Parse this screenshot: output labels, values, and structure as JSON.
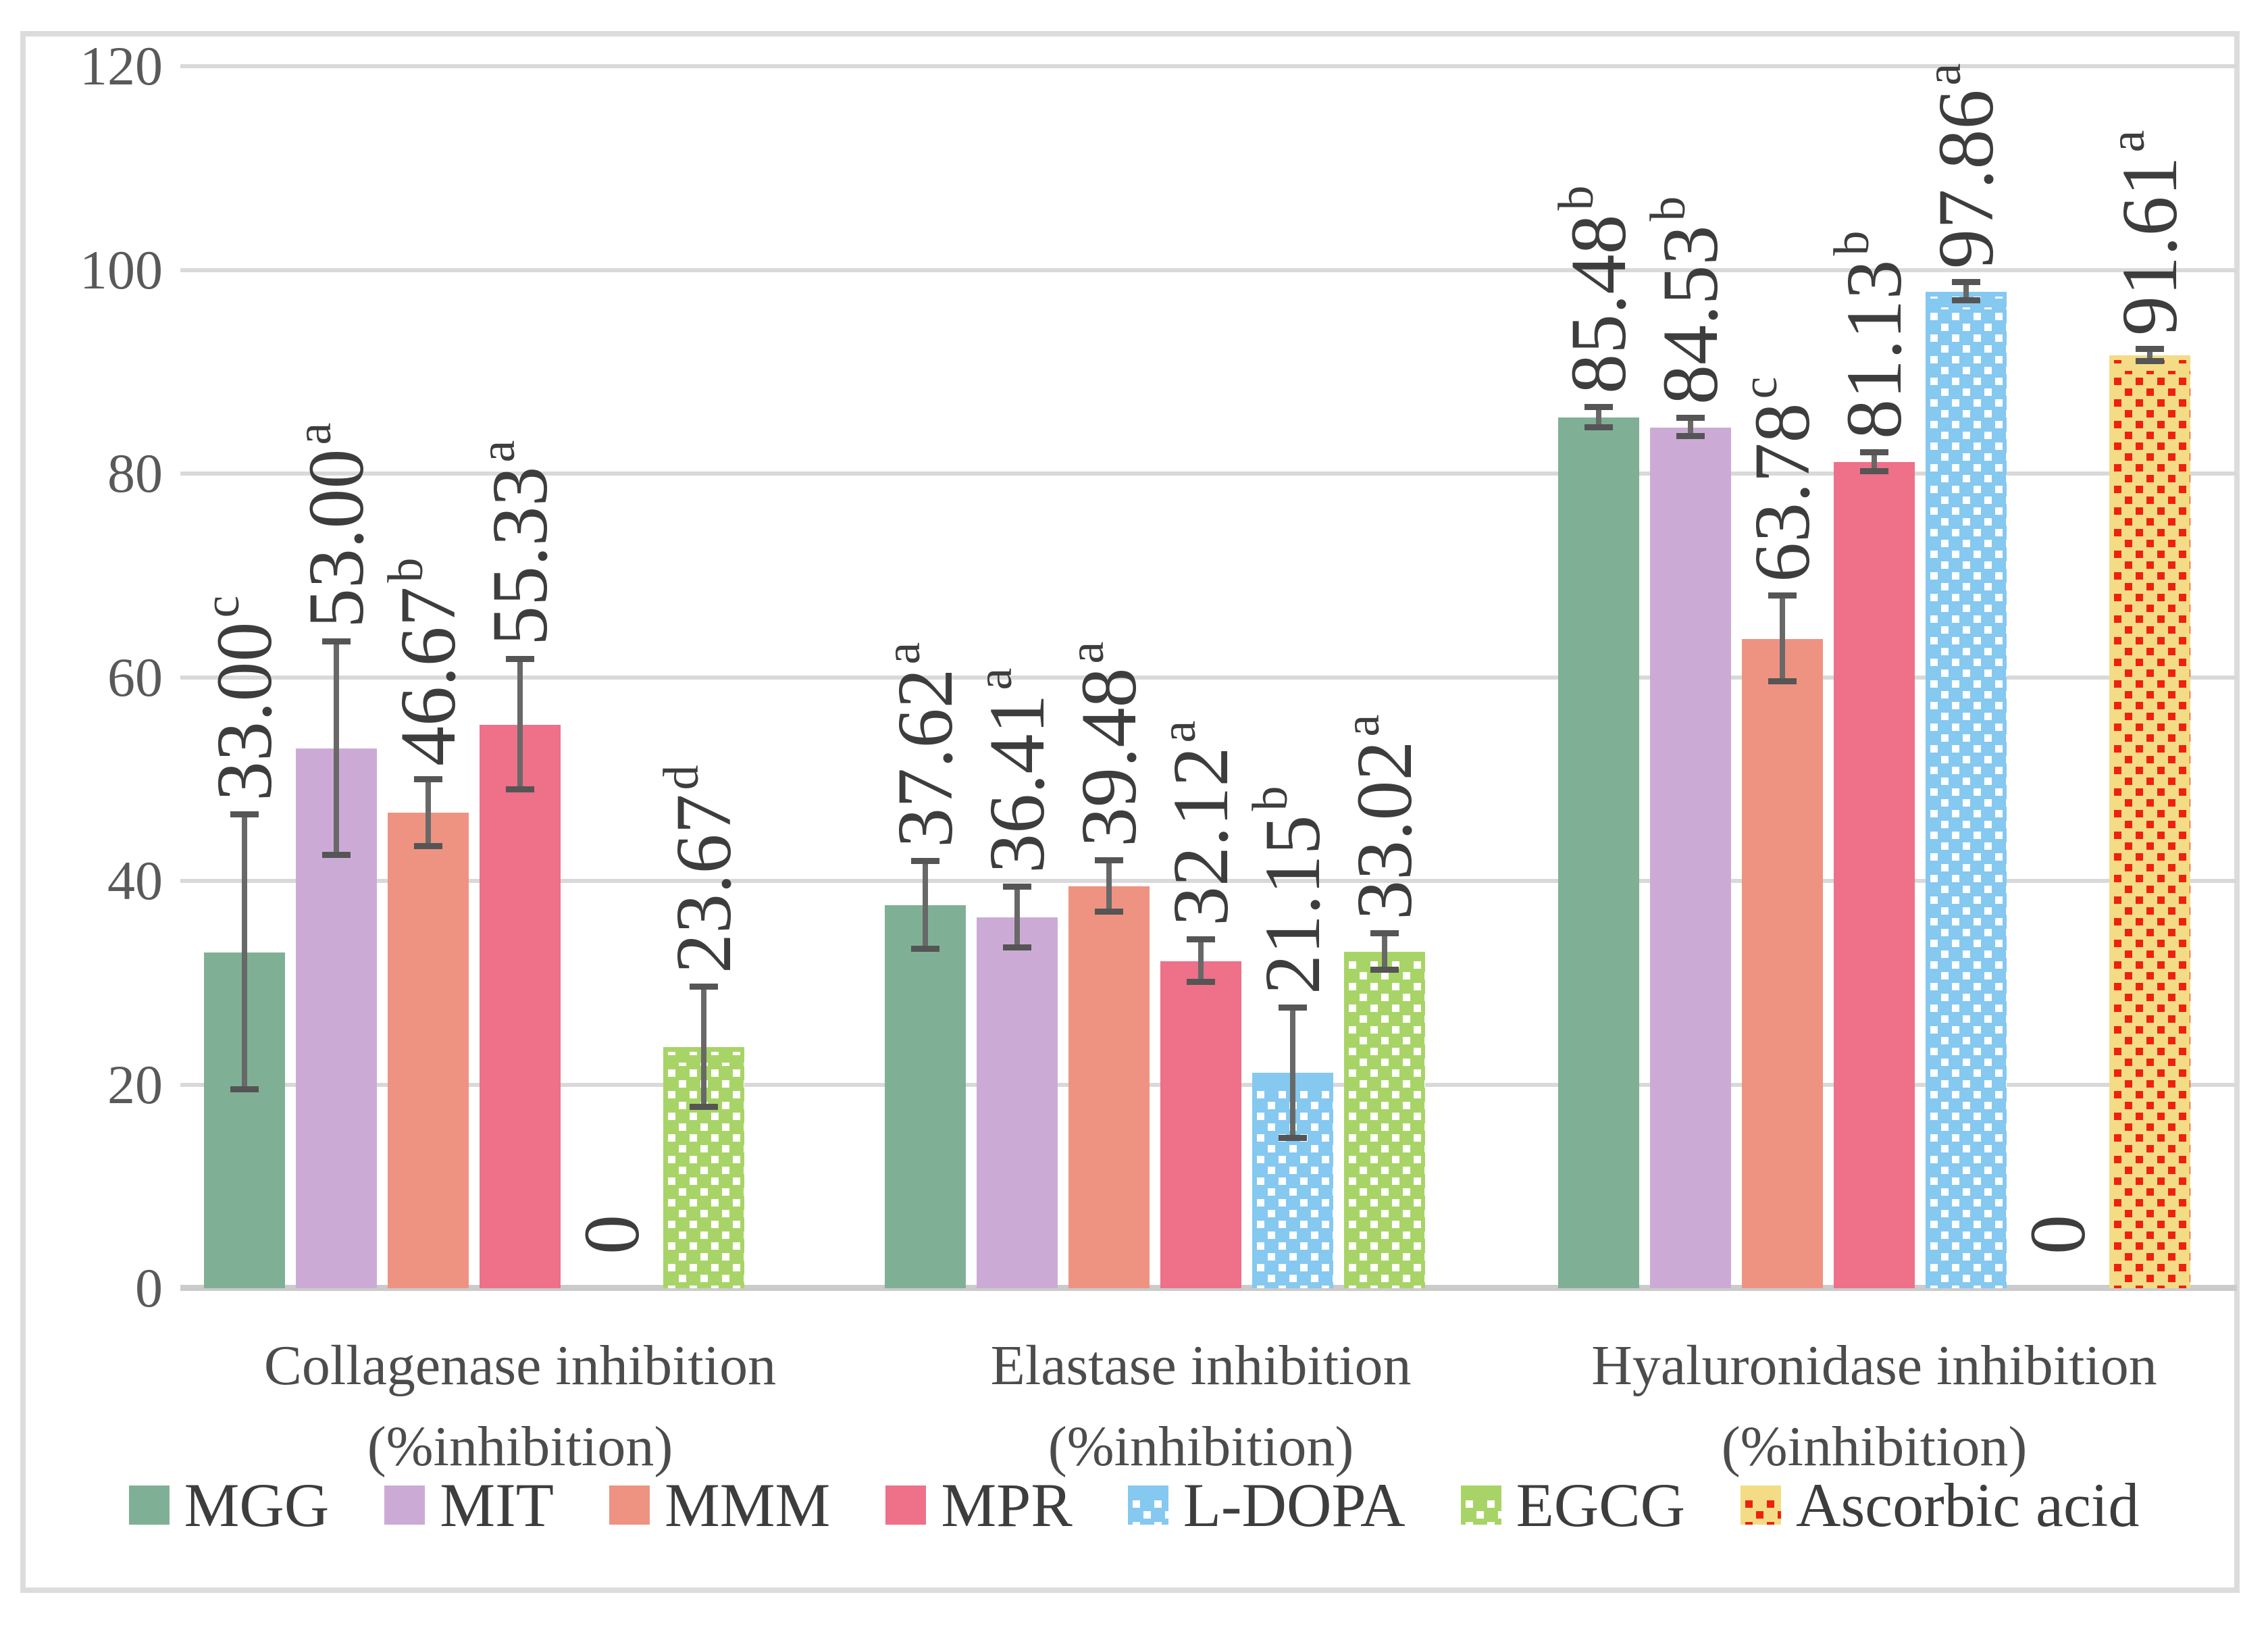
{
  "figure": {
    "background": "#ffffff",
    "frame_color": "#dcdcdc",
    "gridline_color": "#d9d9d9",
    "baseline_color": "#cbcbcb",
    "error_bar_color": "#5a5a5a",
    "label_text_color": "#3d3d3d",
    "tick_text_color": "#595959"
  },
  "axis": {
    "ticks": [
      0,
      20,
      40,
      60,
      80,
      100,
      120
    ],
    "max": 120
  },
  "categories": [
    {
      "line1": "Collagenase inhibition",
      "line2": "(%inhibition)"
    },
    {
      "line1": "Elastase inhibition",
      "line2": "(%inhibition)"
    },
    {
      "line1": "Hyaluronidase inhibition",
      "line2": "(%inhibition)"
    }
  ],
  "chart_data": {
    "type": "bar",
    "title": "",
    "xlabel": "",
    "ylabel": "",
    "ylim": [
      0,
      120
    ],
    "grid": true,
    "legend_position": "bottom",
    "categories": [
      "Collagenase inhibition (%inhibition)",
      "Elastase inhibition (%inhibition)",
      "Hyaluronidase inhibition (%inhibition)"
    ],
    "series": [
      {
        "name": "MGG",
        "color": "#7fb096",
        "pattern": "solid",
        "dot_color": null,
        "values": [
          33.0,
          37.62,
          85.48
        ],
        "errors": [
          13.5,
          4.3,
          1.0
        ],
        "sig": [
          "c",
          "a",
          "b"
        ],
        "labels": [
          "33.00",
          "37.62",
          "85.48"
        ]
      },
      {
        "name": "MIT",
        "color": "#cbabd6",
        "pattern": "solid",
        "dot_color": null,
        "values": [
          53.0,
          36.41,
          84.53
        ],
        "errors": [
          10.5,
          3.0,
          0.9
        ],
        "sig": [
          "a",
          "a",
          "b"
        ],
        "labels": [
          "53.00",
          "36.41",
          "84.53"
        ]
      },
      {
        "name": "MMM",
        "color": "#ee9381",
        "pattern": "solid",
        "dot_color": null,
        "values": [
          46.67,
          39.48,
          63.78
        ],
        "errors": [
          3.3,
          2.5,
          4.2
        ],
        "sig": [
          "b",
          "a",
          "c"
        ],
        "labels": [
          "46.67",
          "39.48",
          "63.78"
        ]
      },
      {
        "name": "MPR",
        "color": "#ee7089",
        "pattern": "solid",
        "dot_color": null,
        "values": [
          55.33,
          32.12,
          81.13
        ],
        "errors": [
          6.4,
          2.1,
          0.9
        ],
        "sig": [
          "a",
          "a",
          "b"
        ],
        "labels": [
          "55.33",
          "32.12",
          "81.13"
        ]
      },
      {
        "name": "L-DOPA",
        "color": "#85c8f0",
        "pattern": "dots",
        "dot_color": "#ffffff",
        "values": [
          0,
          21.15,
          97.86
        ],
        "errors": [
          0,
          6.4,
          0.9
        ],
        "sig": [
          "",
          "b",
          "a"
        ],
        "labels": [
          "0",
          "21.15",
          "97.86"
        ]
      },
      {
        "name": "EGCG",
        "color": "#a8d467",
        "pattern": "dots",
        "dot_color": "#ffffff",
        "values": [
          23.67,
          33.02,
          0
        ],
        "errors": [
          5.9,
          1.8,
          0
        ],
        "sig": [
          "d",
          "a",
          ""
        ],
        "labels": [
          "23.67",
          "33.02",
          "0"
        ]
      },
      {
        "name": "Ascorbic acid",
        "color": "#f3dc85",
        "pattern": "dots",
        "dot_color": "#ee2111",
        "values": [
          null,
          null,
          91.61
        ],
        "errors": [
          0,
          0,
          0.6
        ],
        "sig": [
          "",
          "",
          "a"
        ],
        "labels": [
          "",
          "",
          "91.61"
        ]
      }
    ]
  },
  "legend": {
    "items": [
      "MGG",
      "MIT",
      "MMM",
      "MPR",
      "L-DOPA",
      "EGCG",
      "Ascorbic acid"
    ]
  }
}
